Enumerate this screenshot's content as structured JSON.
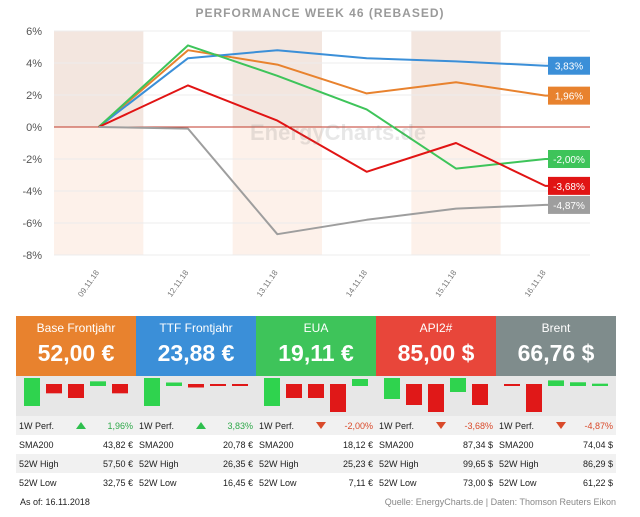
{
  "chart_data": {
    "type": "line",
    "title": "PERFORMANCE WEEK 46 (REBASED)",
    "categories": [
      "09.11.18",
      "12.11.18",
      "13.11.18",
      "14.11.18",
      "15.11.18",
      "16.11.18"
    ],
    "y_tick_labels": [
      "6%",
      "4%",
      "2%",
      "0%",
      "-2%",
      "-4%",
      "-6%",
      "-8%"
    ],
    "ylim": [
      -8,
      6
    ],
    "series": [
      {
        "name": "Base Frontjahr",
        "color": "#e8822e",
        "values": [
          0,
          4.8,
          3.9,
          2.1,
          2.8,
          1.96
        ],
        "end_label": "1,96%"
      },
      {
        "name": "TTF Frontjahr",
        "color": "#3b8fd8",
        "values": [
          0,
          4.3,
          4.8,
          4.3,
          4.1,
          3.83
        ],
        "end_label": "3,83%"
      },
      {
        "name": "EUA",
        "color": "#3ec45a",
        "values": [
          0,
          5.1,
          3.2,
          1.1,
          -2.6,
          -2.0
        ],
        "end_label": "-2,00%"
      },
      {
        "name": "API2#",
        "color": "#e11414",
        "values": [
          0,
          2.6,
          0.4,
          -2.8,
          -1.0,
          -3.68
        ],
        "end_label": "-3,68%"
      },
      {
        "name": "Brent",
        "color": "#9e9e9e",
        "values": [
          0,
          -0.1,
          -6.7,
          -5.8,
          -5.1,
          -4.87
        ],
        "end_label": "-4,87%"
      }
    ]
  },
  "watermark": "EnergyCharts.de",
  "cards": [
    {
      "name": "Base Frontjahr",
      "price": "52,00 €",
      "color": "#e8822e",
      "perf_label": "1W Perf.",
      "perf": "1,96%",
      "dir": "up",
      "sma_label": "SMA200",
      "sma": "43,82 €",
      "high_label": "52W High",
      "high": "57,50 €",
      "low_label": "52W Low",
      "low": "32,75 €",
      "mini": [
        6,
        -2,
        -3,
        1,
        -2
      ]
    },
    {
      "name": "TTF Frontjahr",
      "price": "23,88 €",
      "color": "#3b8fd8",
      "perf_label": "1W Perf.",
      "perf": "3,83%",
      "dir": "up",
      "sma_label": "SMA200",
      "sma": "20,78 €",
      "high_label": "52W High",
      "high": "26,35 €",
      "low_label": "52W Low",
      "low": "16,45 €",
      "mini": [
        8,
        1,
        -1,
        -0.5,
        -0.5
      ]
    },
    {
      "name": "EUA",
      "price": "19,11 €",
      "color": "#3ec45a",
      "perf_label": "1W Perf.",
      "perf": "-2,00%",
      "dir": "down",
      "sma_label": "SMA200",
      "sma": "18,12 €",
      "high_label": "52W High",
      "high": "25,23 €",
      "low_label": "52W Low",
      "low": "7,11 €",
      "mini": [
        4,
        -2,
        -2,
        -4,
        1
      ]
    },
    {
      "name": "API2#",
      "price": "85,00 $",
      "color": "#e8463a",
      "perf_label": "1W Perf.",
      "perf": "-3,68%",
      "dir": "down",
      "sma_label": "SMA200",
      "sma": "87,34 $",
      "high_label": "52W High",
      "high": "99,65 $",
      "low_label": "52W Low",
      "low": "73,00 $",
      "mini": [
        3,
        -3,
        -4,
        2,
        -3
      ]
    },
    {
      "name": "Brent",
      "price": "66,76 $",
      "color": "#7f8c8c",
      "perf_label": "1W Perf.",
      "perf": "-4,87%",
      "dir": "down",
      "sma_label": "SMA200",
      "sma": "74,04 $",
      "high_label": "52W High",
      "high": "86,29 $",
      "low_label": "52W Low",
      "low": "61,22 $",
      "mini": [
        -0.2,
        -6,
        1.2,
        0.8,
        0.5
      ]
    }
  ],
  "footer": {
    "as_of": "As of:  16.11.2018",
    "source": "Quelle: EnergyCharts.de | Daten: Thomson Reuters Eikon"
  }
}
